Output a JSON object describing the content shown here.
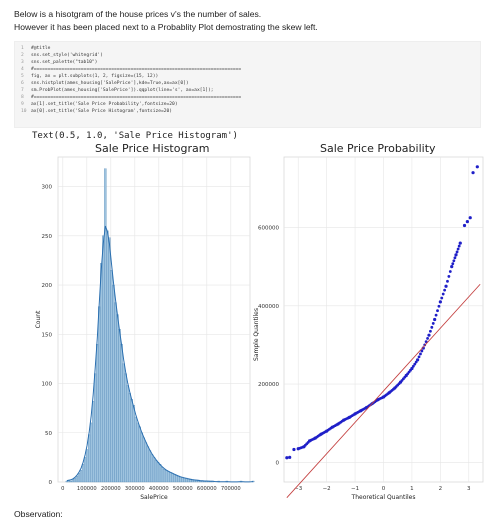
{
  "markdown": {
    "line1": "Below is a hisotgram of the house prices v's the number of sales.",
    "line2": "However it has been placed next to a Probablity Plot demostrating the skew left."
  },
  "code_lines": [
    {
      "n": "1",
      "t": "#@title"
    },
    {
      "n": "2",
      "t": "sns.set_style('whitegrid')"
    },
    {
      "n": "3",
      "t": "sns.set_palette(\"tab10\")"
    },
    {
      "n": "4",
      "t": "#==========================================================================="
    },
    {
      "n": "5",
      "t": "fig, ax = plt.subplots(1, 2, figsize=(15, 12))"
    },
    {
      "n": "6",
      "t": "sns.histplot(ames_housing['SalePrice'],kde=True,ax=ax[0])"
    },
    {
      "n": "7",
      "t": "sm.ProbPlot(ames_housing['SalePrice']).qqplot(line='s', ax=ax[1]);"
    },
    {
      "n": "8",
      "t": "#==========================================================================="
    },
    {
      "n": "9",
      "t": "ax[1].set_title('Sale Price Probability',fontsize=20)"
    },
    {
      "n": "10",
      "t": "ax[0].set_title('Sale Price Histogram',fontsize=20)"
    }
  ],
  "output_text": "Text(0.5, 1.0, 'Sale Price Histogram')",
  "observation": "Observation:",
  "colors": {
    "hist_fill": "#9ec3df",
    "hist_edge": "#4c82b2",
    "kde": "#2a6fb0",
    "qq_points": "#1f1fc8",
    "qq_line": "#c44040"
  },
  "chart_data": [
    {
      "type": "bar",
      "title": "Sale Price Histogram",
      "xlabel": "SalePrice",
      "ylabel": "Count",
      "xlim": [
        -20000,
        780000
      ],
      "ylim": [
        0,
        330
      ],
      "xticks": [
        0,
        100000,
        200000,
        300000,
        400000,
        500000,
        600000,
        700000
      ],
      "yticks": [
        0,
        50,
        100,
        150,
        200,
        250,
        300
      ],
      "bin_start": 12789,
      "bin_width": 8438,
      "values": [
        1,
        2,
        1,
        3,
        4,
        6,
        9,
        12,
        18,
        25,
        33,
        48,
        60,
        82,
        110,
        140,
        178,
        222,
        250,
        318,
        255,
        248,
        215,
        200,
        182,
        170,
        155,
        140,
        120,
        110,
        98,
        90,
        84,
        78,
        66,
        60,
        56,
        50,
        45,
        40,
        36,
        32,
        28,
        25,
        22,
        20,
        18,
        15,
        13,
        12,
        11,
        10,
        9,
        8,
        7,
        6,
        5,
        5,
        4,
        4,
        3,
        3,
        2,
        2,
        2,
        2,
        1,
        1,
        1,
        1,
        1,
        1,
        1,
        0,
        0,
        1,
        0,
        0,
        0,
        1,
        0,
        0,
        0,
        0,
        0,
        0,
        1,
        0,
        0,
        0,
        0,
        0,
        1
      ],
      "series": [
        {
          "name": "KDE",
          "values": []
        }
      ]
    },
    {
      "type": "scatter",
      "title": "Sale Price Probability",
      "xlabel": "Theoretical Quantiles",
      "ylabel": "Sample Quantiles",
      "xlim": [
        -3.5,
        3.5
      ],
      "ylim": [
        -50000,
        780000
      ],
      "xticks": [
        -3,
        -2,
        -1,
        0,
        1,
        2,
        3
      ],
      "yticks": [
        0,
        200000,
        400000,
        600000
      ],
      "line": {
        "x": [
          -3.4,
          3.4
        ],
        "y": [
          -90000,
          455000
        ]
      },
      "x": [
        -3.4,
        -3.3,
        -3.15,
        -3.0,
        -2.8,
        -2.6,
        -2.4,
        -2.2,
        -2.0,
        -1.8,
        -1.6,
        -1.4,
        -1.2,
        -1.0,
        -0.8,
        -0.6,
        -0.4,
        -0.2,
        0.0,
        0.2,
        0.4,
        0.6,
        0.8,
        1.0,
        1.2,
        1.4,
        1.6,
        1.8,
        2.0,
        2.2,
        2.4,
        2.55,
        2.7,
        2.85,
        2.95,
        3.05,
        3.15,
        3.3
      ],
      "y": [
        12000,
        13000,
        33000,
        35000,
        40000,
        55000,
        62000,
        72000,
        80000,
        90000,
        98000,
        108000,
        115000,
        124000,
        132000,
        140000,
        150000,
        160000,
        167000,
        178000,
        190000,
        205000,
        222000,
        240000,
        262000,
        292000,
        325000,
        365000,
        410000,
        450000,
        500000,
        530000,
        560000,
        605000,
        615000,
        625000,
        740000,
        755000
      ]
    }
  ]
}
